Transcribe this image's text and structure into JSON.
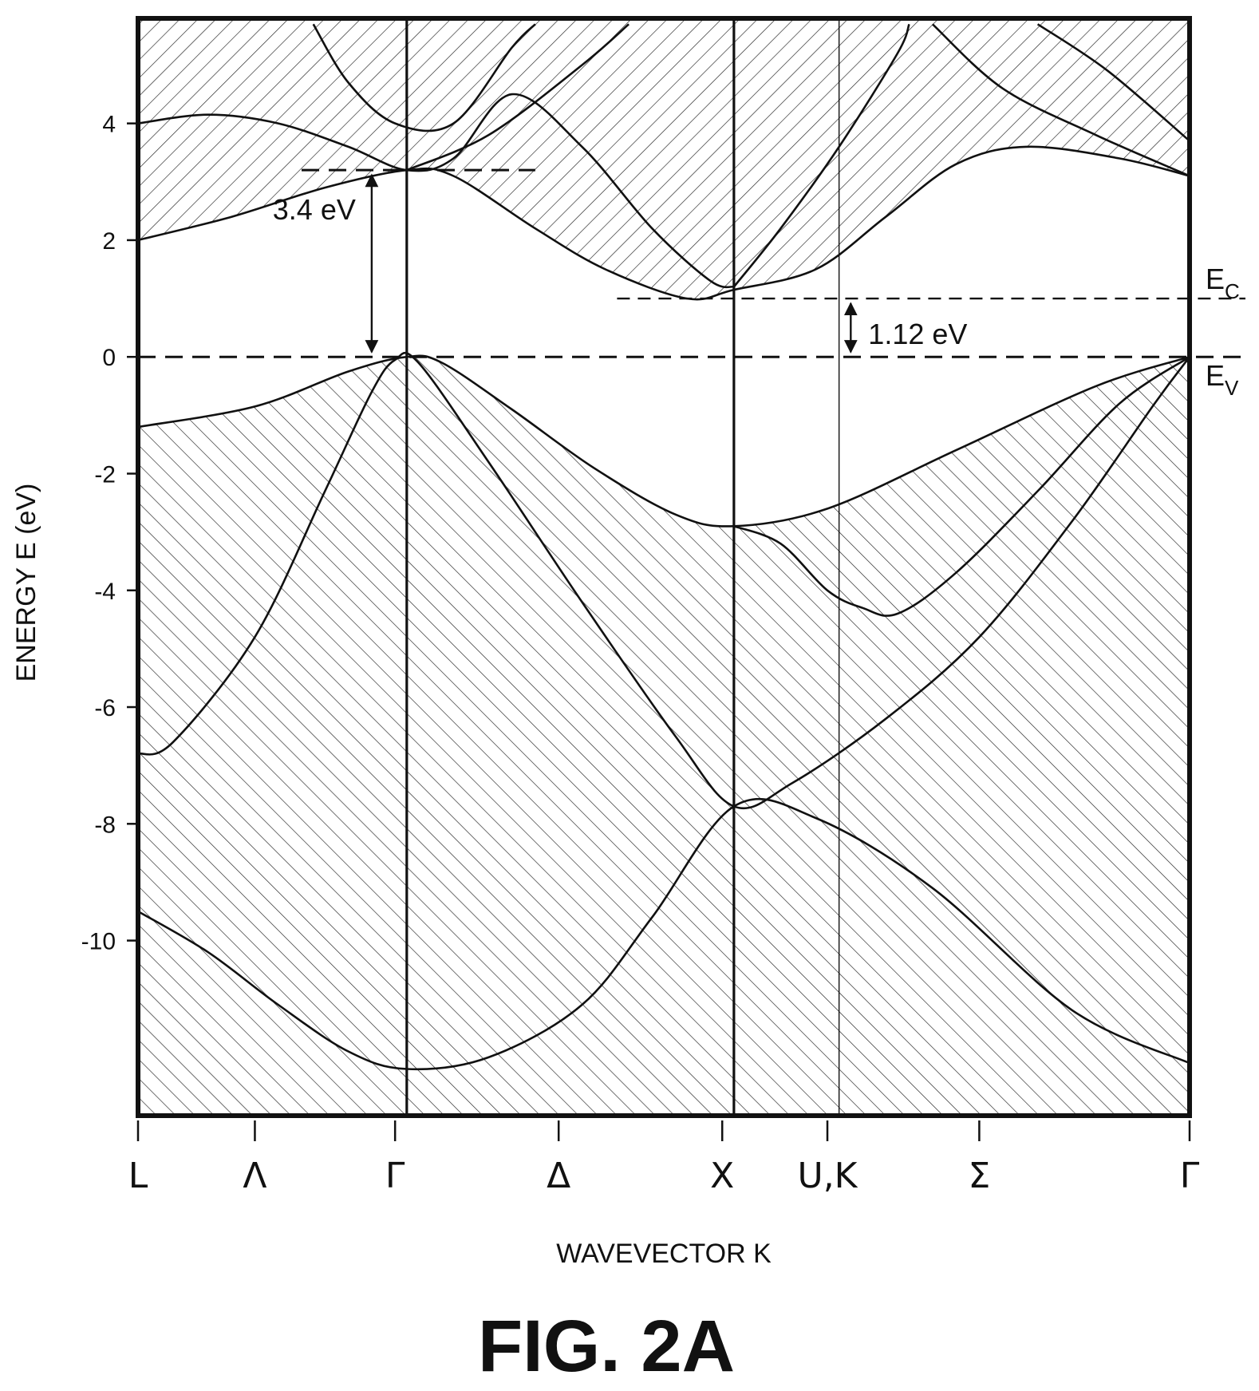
{
  "figure_title": "FIG. 2A",
  "chart_data": {
    "type": "line",
    "xlabel": "WAVEVECTOR K",
    "ylabel": "ENERGY E (eV)",
    "ylim": [
      -13,
      5.8
    ],
    "y_ticks": [
      4,
      2,
      0,
      -2,
      -4,
      -6,
      -8,
      -10
    ],
    "y_tick_labels": [
      "4",
      "2",
      "0",
      "-2",
      "-4",
      "-6",
      "-8",
      "-10"
    ],
    "x_ticks": [
      {
        "label": "L",
        "k": 0
      },
      {
        "label": "Λ",
        "k": 0.5
      },
      {
        "label": "Γ",
        "k": 1.1
      },
      {
        "label": "Δ",
        "k": 1.8
      },
      {
        "label": "X",
        "k": 2.5
      },
      {
        "label": "U,K",
        "k": 2.95
      },
      {
        "label": "Σ",
        "k": 3.6
      },
      {
        "label": "Γ",
        "k": 4.5
      }
    ],
    "symmetry_lines": [
      1.15,
      2.55,
      3.0
    ],
    "hatched_regions": [
      "conduction bands (above lowest conduction band)",
      "valence bands (below highest valence band)"
    ],
    "series": [
      {
        "points": [
          [
            0,
            -9.5
          ],
          [
            0.3,
            -10.2
          ],
          [
            0.6,
            -11.1
          ],
          [
            0.9,
            -11.9
          ],
          [
            1.15,
            -12.2
          ],
          [
            1.5,
            -12.0
          ],
          [
            1.9,
            -11.1
          ],
          [
            2.2,
            -9.6
          ],
          [
            2.55,
            -7.7
          ],
          [
            2.9,
            -7.9
          ],
          [
            3.4,
            -9.1
          ],
          [
            4.0,
            -11.2
          ],
          [
            4.5,
            -12.1
          ]
        ]
      },
      {
        "points": [
          [
            0,
            -6.8
          ],
          [
            0.15,
            -6.6
          ],
          [
            0.5,
            -4.8
          ],
          [
            0.8,
            -2.3
          ],
          [
            1.0,
            -0.6
          ],
          [
            1.1,
            -0.05
          ],
          [
            1.2,
            -0.1
          ],
          [
            1.5,
            -1.8
          ],
          [
            1.9,
            -4.2
          ],
          [
            2.3,
            -6.5
          ],
          [
            2.55,
            -7.7
          ],
          [
            2.8,
            -7.3
          ],
          [
            3.2,
            -6.2
          ],
          [
            3.6,
            -4.8
          ],
          [
            4.0,
            -2.8
          ],
          [
            4.35,
            -0.8
          ],
          [
            4.5,
            0
          ]
        ]
      },
      {
        "points": [
          [
            0,
            -1.2
          ],
          [
            0.5,
            -0.85
          ],
          [
            0.9,
            -0.25
          ],
          [
            1.15,
            0
          ],
          [
            1.3,
            -0.1
          ],
          [
            1.6,
            -0.9
          ],
          [
            1.95,
            -1.9
          ],
          [
            2.3,
            -2.7
          ],
          [
            2.55,
            -2.9
          ],
          [
            2.95,
            -2.6
          ],
          [
            3.5,
            -1.6
          ],
          [
            4.1,
            -0.5
          ],
          [
            4.5,
            0
          ]
        ]
      },
      {
        "points": [
          [
            2.55,
            -2.9
          ],
          [
            2.75,
            -3.2
          ],
          [
            2.95,
            -4.0
          ],
          [
            3.1,
            -4.3
          ],
          [
            3.25,
            -4.4
          ],
          [
            3.5,
            -3.7
          ],
          [
            3.85,
            -2.3
          ],
          [
            4.2,
            -0.8
          ],
          [
            4.5,
            0
          ]
        ]
      },
      {
        "points": [
          [
            0,
            2.0
          ],
          [
            0.4,
            2.4
          ],
          [
            0.8,
            2.9
          ],
          [
            1.15,
            3.2
          ],
          [
            1.35,
            3.1
          ],
          [
            1.7,
            2.2
          ],
          [
            2.0,
            1.5
          ],
          [
            2.35,
            1.0
          ],
          [
            2.55,
            1.15
          ],
          [
            2.9,
            1.5
          ],
          [
            3.2,
            2.4
          ],
          [
            3.5,
            3.3
          ],
          [
            3.8,
            3.6
          ],
          [
            4.2,
            3.4
          ],
          [
            4.5,
            3.1
          ]
        ]
      },
      {
        "points": [
          [
            0,
            4.0
          ],
          [
            0.3,
            4.15
          ],
          [
            0.6,
            4.0
          ],
          [
            0.9,
            3.6
          ],
          [
            1.15,
            3.2
          ],
          [
            1.35,
            3.4
          ],
          [
            1.6,
            4.5
          ],
          [
            1.9,
            3.6
          ],
          [
            2.2,
            2.2
          ],
          [
            2.45,
            1.3
          ],
          [
            2.55,
            1.2
          ]
        ]
      },
      {
        "points": [
          [
            0.75,
            5.7
          ],
          [
            0.9,
            4.7
          ],
          [
            1.1,
            4.0
          ],
          [
            1.35,
            4.0
          ],
          [
            1.6,
            5.3
          ],
          [
            1.7,
            5.7
          ]
        ]
      },
      {
        "points": [
          [
            1.15,
            3.2
          ],
          [
            1.5,
            3.8
          ],
          [
            1.9,
            5.0
          ],
          [
            2.1,
            5.7
          ]
        ]
      },
      {
        "points": [
          [
            2.55,
            1.2
          ],
          [
            2.75,
            2.2
          ],
          [
            3.0,
            3.6
          ],
          [
            3.25,
            5.2
          ],
          [
            3.3,
            5.7
          ]
        ]
      },
      {
        "points": [
          [
            3.4,
            5.7
          ],
          [
            3.7,
            4.6
          ],
          [
            4.1,
            3.8
          ],
          [
            4.5,
            3.1
          ]
        ]
      },
      {
        "points": [
          [
            3.85,
            5.7
          ],
          [
            4.15,
            4.9
          ],
          [
            4.5,
            3.7
          ]
        ]
      }
    ],
    "reference_lines": [
      {
        "label": "E_C",
        "y": 1.0
      },
      {
        "label": "E_V",
        "y": 0
      }
    ],
    "annotations": [
      {
        "text": "3.4 eV",
        "from_y": 0,
        "to_y": 3.2
      },
      {
        "text": "1.12 eV",
        "from_y": 0,
        "to_y": 1.0
      }
    ],
    "level_labels": {
      "ec_main": "E",
      "ec_sub": "C",
      "ev_main": "E",
      "ev_sub": "V"
    }
  }
}
